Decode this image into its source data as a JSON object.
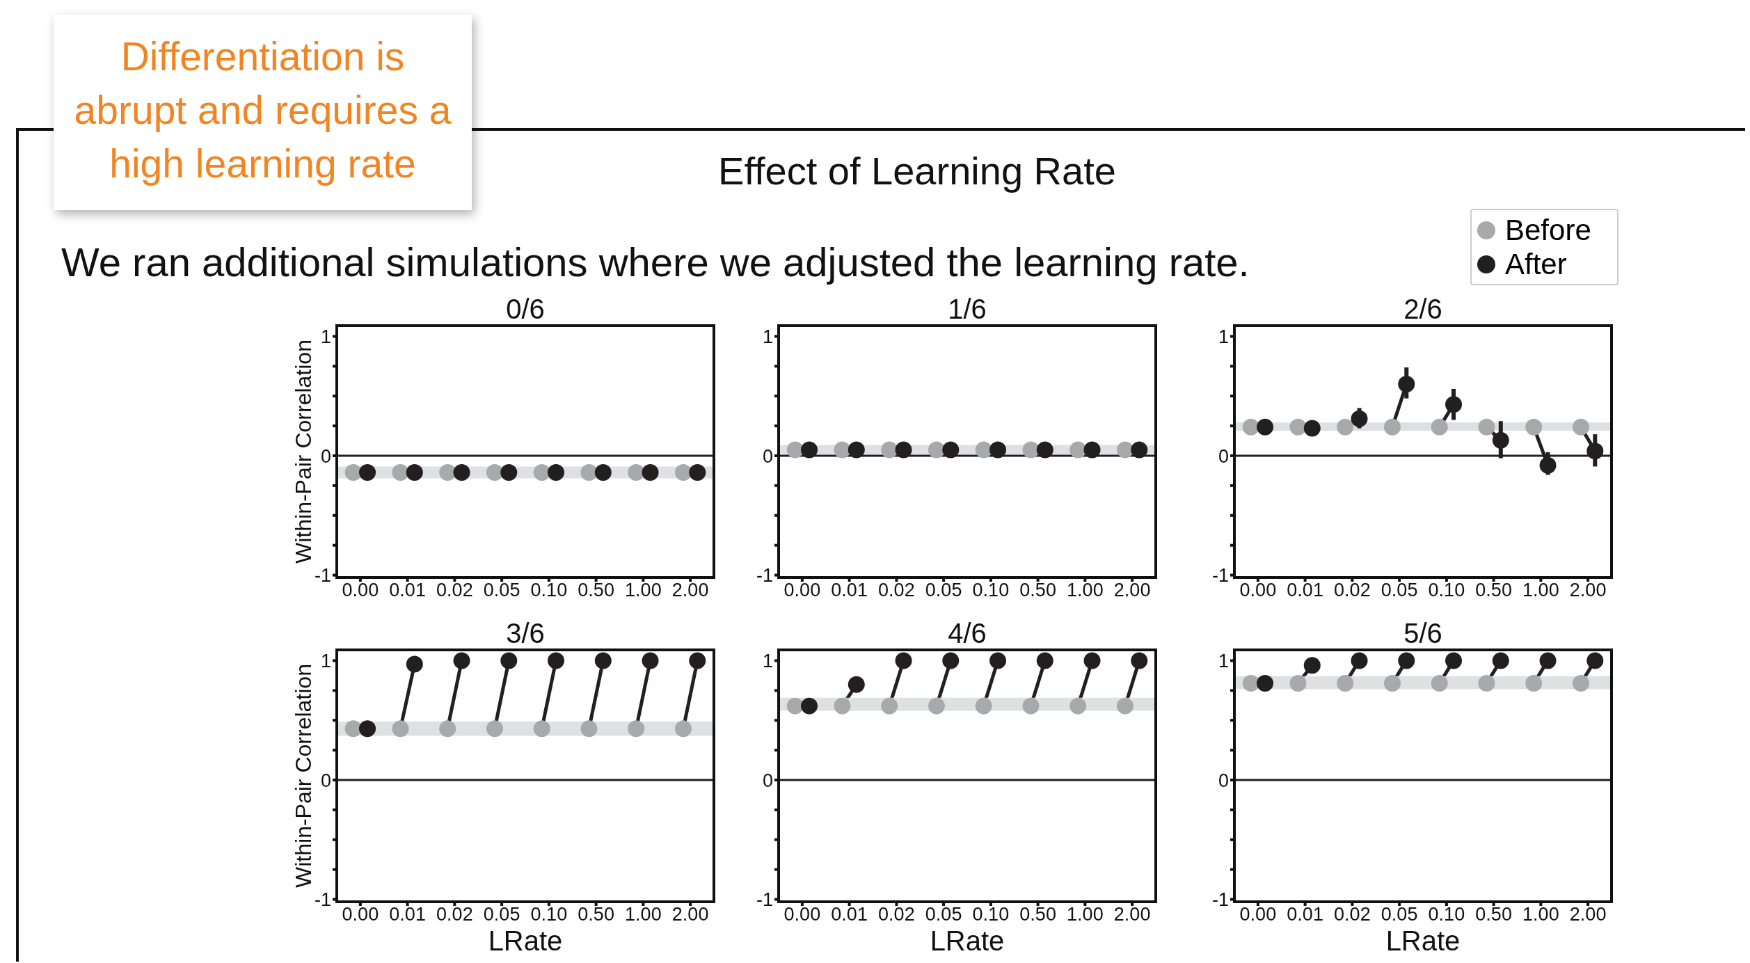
{
  "chart_data": [
    {
      "type": "other",
      "title": "Effect of Learning Rate",
      "subtitle": "We ran additional simulations where we adjusted the learning rate.",
      "annotations": [
        "Differentiation is abrupt and requires a high learning rate"
      ]
    },
    {
      "type": "scatter",
      "title": "0/6",
      "ylabel": "Within-Pair Correlation",
      "categories": [
        "0.00",
        "0.01",
        "0.02",
        "0.05",
        "0.10",
        "0.50",
        "1.00",
        "2.00"
      ],
      "ylim": [
        -1.02,
        1.09
      ],
      "yticks": [
        -1,
        {
          "value": -0.75,
          "label": null
        },
        {
          "value": -0.5,
          "label": null
        },
        {
          "value": -0.25,
          "label": null
        },
        0,
        {
          "value": 0.25,
          "label": null
        },
        {
          "value": 0.5,
          "label": null
        },
        {
          "value": 0.75,
          "label": null
        },
        1
      ],
      "marker": "circle",
      "series": [
        {
          "color": "#a7a9ac",
          "values": [
            -0.14,
            -0.14,
            -0.14,
            -0.14,
            -0.14,
            -0.14,
            -0.14,
            -0.14
          ]
        },
        {
          "color": "#231f20",
          "values": [
            -0.14,
            -0.14,
            -0.14,
            -0.14,
            -0.14,
            -0.14,
            -0.14,
            -0.14
          ]
        }
      ],
      "bands": [
        {
          "axis": "y",
          "from": -0.19,
          "to": -0.09,
          "color": "#dcdddf"
        }
      ],
      "ref_lines": [
        {
          "axis": "y",
          "value": 0,
          "color": "#231f20"
        }
      ]
    },
    {
      "type": "scatter",
      "title": "1/6",
      "categories": [
        "0.00",
        "0.01",
        "0.02",
        "0.05",
        "0.10",
        "0.50",
        "1.00",
        "2.00"
      ],
      "ylim": [
        -1.02,
        1.09
      ],
      "yticks": [
        -1,
        {
          "value": -0.75,
          "label": null
        },
        {
          "value": -0.5,
          "label": null
        },
        {
          "value": -0.25,
          "label": null
        },
        0,
        {
          "value": 0.25,
          "label": null
        },
        {
          "value": 0.5,
          "label": null
        },
        {
          "value": 0.75,
          "label": null
        },
        1
      ],
      "marker": "circle",
      "series": [
        {
          "color": "#a7a9ac",
          "values": [
            0.05,
            0.05,
            0.05,
            0.05,
            0.05,
            0.05,
            0.05,
            0.05
          ]
        },
        {
          "color": "#231f20",
          "values": [
            0.05,
            0.05,
            0.05,
            0.05,
            0.05,
            0.05,
            0.05,
            0.05
          ]
        }
      ],
      "bands": [
        {
          "axis": "y",
          "from": 0.01,
          "to": 0.09,
          "color": "#dcdddf"
        }
      ],
      "ref_lines": [
        {
          "axis": "y",
          "value": 0,
          "color": "#231f20"
        }
      ]
    },
    {
      "type": "scatter",
      "title": "2/6",
      "categories": [
        "0.00",
        "0.01",
        "0.02",
        "0.05",
        "0.10",
        "0.50",
        "1.00",
        "2.00"
      ],
      "ylim": [
        -1.02,
        1.09
      ],
      "yticks": [
        -1,
        {
          "value": -0.75,
          "label": null
        },
        {
          "value": -0.5,
          "label": null
        },
        {
          "value": -0.25,
          "label": null
        },
        0,
        {
          "value": 0.25,
          "label": null
        },
        {
          "value": 0.5,
          "label": null
        },
        {
          "value": 0.75,
          "label": null
        },
        1
      ],
      "marker": "circle",
      "legend": "top right",
      "series": [
        {
          "name": "Before",
          "color": "#a7a9ac",
          "values": [
            0.24,
            0.24,
            0.24,
            0.24,
            0.24,
            0.24,
            0.24,
            0.24
          ]
        },
        {
          "name": "After",
          "color": "#231f20",
          "values": [
            0.24,
            0.23,
            0.31,
            0.6,
            0.43,
            0.13,
            -0.08,
            0.04
          ],
          "errors": [
            null,
            null,
            [
              0.23,
              0.4
            ],
            [
              0.48,
              0.74
            ],
            [
              0.3,
              0.56
            ],
            [
              -0.02,
              0.29
            ],
            [
              -0.16,
              0.03
            ],
            [
              -0.09,
              0.18
            ]
          ]
        }
      ],
      "bands": [
        {
          "axis": "y",
          "from": 0.21,
          "to": 0.28,
          "color": "#dcdddf"
        }
      ],
      "ref_lines": [
        {
          "axis": "y",
          "value": 0,
          "color": "#231f20"
        }
      ]
    },
    {
      "type": "scatter",
      "title": "3/6",
      "ylabel": "Within-Pair Correlation",
      "xlabel": "LRate",
      "categories": [
        "0.00",
        "0.01",
        "0.02",
        "0.05",
        "0.10",
        "0.50",
        "1.00",
        "2.00"
      ],
      "ylim": [
        -1.02,
        1.09
      ],
      "yticks": [
        -1,
        {
          "value": -0.75,
          "label": null
        },
        {
          "value": -0.5,
          "label": null
        },
        {
          "value": -0.25,
          "label": null
        },
        0,
        {
          "value": 0.25,
          "label": null
        },
        {
          "value": 0.5,
          "label": null
        },
        {
          "value": 0.75,
          "label": null
        },
        1
      ],
      "marker": "circle",
      "series": [
        {
          "color": "#a7a9ac",
          "values": [
            0.43,
            0.43,
            0.43,
            0.43,
            0.43,
            0.43,
            0.43,
            0.43
          ]
        },
        {
          "color": "#231f20",
          "values": [
            0.43,
            0.97,
            1,
            1,
            1,
            1,
            1,
            1
          ]
        }
      ],
      "bands": [
        {
          "axis": "y",
          "from": 0.37,
          "to": 0.49,
          "color": "#dcdddf"
        }
      ],
      "ref_lines": [
        {
          "axis": "y",
          "value": 0,
          "color": "#231f20"
        }
      ]
    },
    {
      "type": "scatter",
      "title": "4/6",
      "xlabel": "LRate",
      "categories": [
        "0.00",
        "0.01",
        "0.02",
        "0.05",
        "0.10",
        "0.50",
        "1.00",
        "2.00"
      ],
      "ylim": [
        -1.02,
        1.09
      ],
      "yticks": [
        -1,
        {
          "value": -0.75,
          "label": null
        },
        {
          "value": -0.5,
          "label": null
        },
        {
          "value": -0.25,
          "label": null
        },
        0,
        {
          "value": 0.25,
          "label": null
        },
        {
          "value": 0.5,
          "label": null
        },
        {
          "value": 0.75,
          "label": null
        },
        1
      ],
      "marker": "circle",
      "series": [
        {
          "color": "#a7a9ac",
          "values": [
            0.62,
            0.62,
            0.62,
            0.62,
            0.62,
            0.62,
            0.62,
            0.62
          ]
        },
        {
          "color": "#231f20",
          "values": [
            0.62,
            0.8,
            1,
            1,
            1,
            1,
            1,
            1
          ],
          "errors": [
            null,
            [
              0.74,
              0.86
            ],
            null,
            null,
            null,
            null,
            null,
            null
          ]
        }
      ],
      "bands": [
        {
          "axis": "y",
          "from": 0.58,
          "to": 0.69,
          "color": "#dcdddf"
        }
      ],
      "ref_lines": [
        {
          "axis": "y",
          "value": 0,
          "color": "#231f20"
        }
      ]
    },
    {
      "type": "scatter",
      "title": "5/6",
      "xlabel": "LRate",
      "categories": [
        "0.00",
        "0.01",
        "0.02",
        "0.05",
        "0.10",
        "0.50",
        "1.00",
        "2.00"
      ],
      "ylim": [
        -1.02,
        1.09
      ],
      "yticks": [
        -1,
        {
          "value": -0.75,
          "label": null
        },
        {
          "value": -0.5,
          "label": null
        },
        {
          "value": -0.25,
          "label": null
        },
        0,
        {
          "value": 0.25,
          "label": null
        },
        {
          "value": 0.5,
          "label": null
        },
        {
          "value": 0.75,
          "label": null
        },
        1
      ],
      "marker": "circle",
      "series": [
        {
          "color": "#a7a9ac",
          "values": [
            0.81,
            0.81,
            0.81,
            0.81,
            0.81,
            0.81,
            0.81,
            0.81
          ]
        },
        {
          "color": "#231f20",
          "values": [
            0.81,
            0.96,
            1,
            1,
            1,
            1,
            1,
            1
          ]
        }
      ],
      "bands": [
        {
          "axis": "y",
          "from": 0.76,
          "to": 0.87,
          "color": "#dcdddf"
        }
      ],
      "ref_lines": [
        {
          "axis": "y",
          "value": 0,
          "color": "#231f20"
        }
      ]
    }
  ]
}
